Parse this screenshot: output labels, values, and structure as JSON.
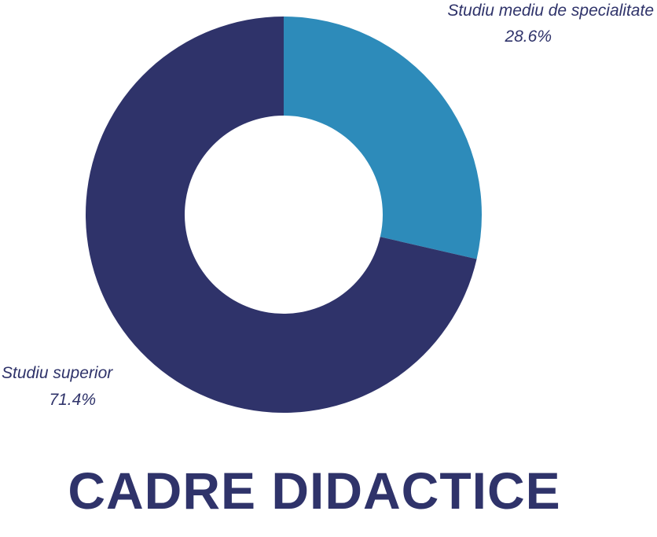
{
  "colors": {
    "background": "#ffffff",
    "text": "#2f336a"
  },
  "chart_data": {
    "type": "pie",
    "donut": true,
    "title": "CADRE DIDACTICE",
    "slices": [
      {
        "label": "Studiu mediu de specialitate",
        "value": 28.6,
        "value_label": "28.6%",
        "color": "#2d8bba"
      },
      {
        "label": "Studiu superior",
        "value": 71.4,
        "value_label": "71.4%",
        "color": "#2f336a"
      }
    ],
    "start_angle": "12 o'clock",
    "direction": "clockwise",
    "legend": "none"
  }
}
